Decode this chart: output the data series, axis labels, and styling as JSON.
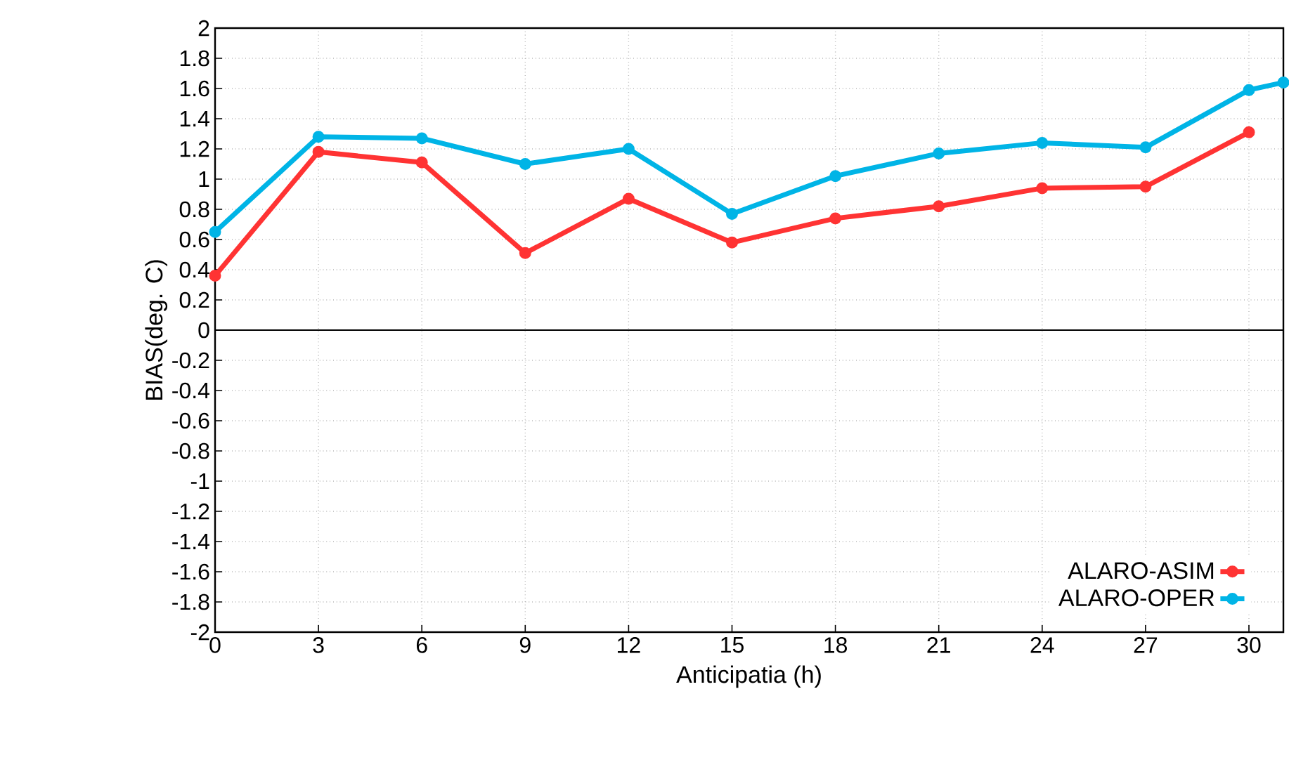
{
  "chart_data": {
    "type": "line",
    "xlabel": "Anticipatia (h)",
    "ylabel": "BIAS(deg. C)",
    "xlim": [
      0,
      31
    ],
    "ylim": [
      -2,
      2
    ],
    "xticks": [
      0,
      3,
      6,
      9,
      12,
      15,
      18,
      21,
      24,
      27,
      30
    ],
    "yticks": [
      -2,
      -1.8,
      -1.6,
      -1.4,
      -1.2,
      -1,
      -0.8,
      -0.6,
      -0.4,
      -0.2,
      0,
      0.2,
      0.4,
      0.6,
      0.8,
      1,
      1.2,
      1.4,
      1.6,
      1.8,
      2
    ],
    "series": [
      {
        "name": "ALARO-ASIM",
        "color": "#ff3333",
        "x": [
          0,
          3,
          6,
          9,
          12,
          15,
          18,
          21,
          24,
          27,
          30
        ],
        "values": [
          0.36,
          1.18,
          1.11,
          0.51,
          0.87,
          0.58,
          0.74,
          0.82,
          0.94,
          0.95,
          1.31
        ]
      },
      {
        "name": "ALARO-OPER",
        "color": "#00b4e6",
        "x": [
          0,
          3,
          6,
          9,
          12,
          15,
          18,
          21,
          24,
          27,
          30,
          31
        ],
        "values": [
          0.65,
          1.28,
          1.27,
          1.1,
          1.2,
          0.77,
          1.02,
          1.17,
          1.24,
          1.21,
          1.59,
          1.64
        ]
      }
    ],
    "ref_lines": [
      {
        "axis": "y",
        "value": 0,
        "color": "#000000",
        "line_style": "solid"
      }
    ],
    "grid": true,
    "legend": "bottom right",
    "marker": "circle",
    "line_style": "solid"
  }
}
